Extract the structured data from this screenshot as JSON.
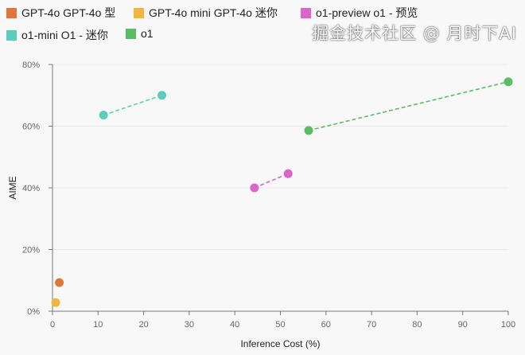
{
  "chart_data": {
    "type": "scatter",
    "title": "",
    "xlabel": "Inference Cost (%)",
    "ylabel": "AIME",
    "xlim": [
      0,
      100
    ],
    "ylim": [
      0,
      80
    ],
    "xticks": [
      "0",
      "10",
      "20",
      "30",
      "40",
      "50",
      "60",
      "70",
      "80",
      "90",
      "100"
    ],
    "yticks": [
      "0%",
      "20%",
      "40%",
      "60%",
      "80%"
    ],
    "grid": "horizontal",
    "legend_position": "top-left",
    "series": [
      {
        "name": "GPT-4o GPT-4o 型",
        "color": "#e0763a",
        "points": [
          [
            1.5,
            9.3
          ]
        ]
      },
      {
        "name": "GPT-4o mini GPT-4o 迷你",
        "color": "#f0b640",
        "points": [
          [
            0.7,
            2.8
          ]
        ]
      },
      {
        "name": "o1-preview o1 - 预览",
        "color": "#d966c8",
        "points": [
          [
            44.3,
            40.0
          ],
          [
            51.7,
            44.6
          ]
        ]
      },
      {
        "name": "o1-mini O1 - 迷你",
        "color": "#5ccdbd",
        "points": [
          [
            11.2,
            63.6
          ],
          [
            24.0,
            70.0
          ]
        ]
      },
      {
        "name": "o1",
        "color": "#5bbd63",
        "points": [
          [
            56.2,
            58.6
          ],
          [
            100,
            74.4
          ]
        ]
      }
    ]
  },
  "watermark": "掘金技术社区 @ 月时下AI"
}
